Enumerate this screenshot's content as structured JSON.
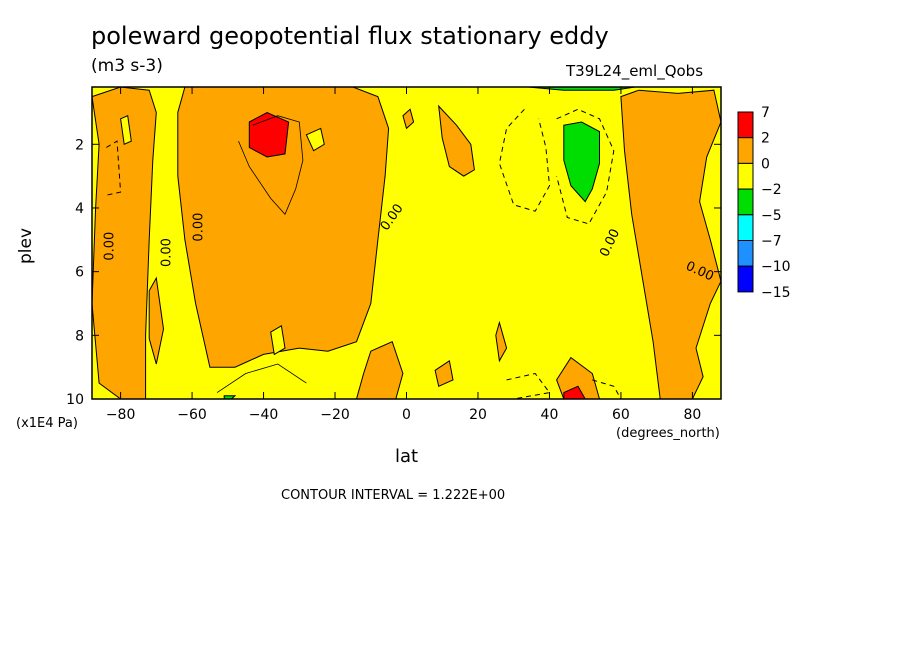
{
  "chart_data": {
    "type": "heatmap",
    "title": "poleward geopotential flux stationary eddy",
    "units": "(m3 s-3)",
    "dataset": "T39L24_eml_Qobs",
    "xlabel": "lat",
    "xunit": "(degrees_north)",
    "ylabel": "plev",
    "yunit": "(x1E4 Pa)",
    "contour_interval_text": "CONTOUR INTERVAL = 1.222E+00",
    "xlim": [
      -88,
      88
    ],
    "ylim": [
      10,
      0.2
    ],
    "x_ticks": [
      {
        "v": -80,
        "label": "−80"
      },
      {
        "v": -60,
        "label": "−60"
      },
      {
        "v": -40,
        "label": "−40"
      },
      {
        "v": -20,
        "label": "−20"
      },
      {
        "v": 0,
        "label": "0"
      },
      {
        "v": 20,
        "label": "20"
      },
      {
        "v": 40,
        "label": "40"
      },
      {
        "v": 60,
        "label": "60"
      },
      {
        "v": 80,
        "label": "80"
      }
    ],
    "y_ticks": [
      {
        "v": 2,
        "label": "2"
      },
      {
        "v": 4,
        "label": "4"
      },
      {
        "v": 6,
        "label": "6"
      },
      {
        "v": 8,
        "label": "8"
      },
      {
        "v": 10,
        "label": "10"
      }
    ],
    "colorbar": {
      "labels": [
        "7",
        "2",
        "0",
        "−2",
        "−5",
        "−7",
        "−10",
        "−15"
      ],
      "colors": [
        "#ff0000",
        "#ffa500",
        "#ffff00",
        "#00dd00",
        "#00ffff",
        "#1e90ff",
        "#0000ff"
      ]
    },
    "regions": [
      {
        "level": "0 to 2",
        "color": "#ffa500",
        "points": [
          [
            -88,
            0.5
          ],
          [
            -86,
            2
          ],
          [
            -87,
            4
          ],
          [
            -88,
            7
          ],
          [
            -86,
            9.5
          ],
          [
            -80,
            10
          ],
          [
            -73,
            10
          ],
          [
            -73,
            8
          ],
          [
            -72,
            5
          ],
          [
            -71,
            2.5
          ],
          [
            -70,
            1
          ],
          [
            -72,
            0.3
          ],
          [
            -80,
            0.2
          ]
        ]
      },
      {
        "level": "0 to 2",
        "color": "#ffa500",
        "points": [
          [
            -62,
            0.2
          ],
          [
            -64,
            1
          ],
          [
            -64,
            3
          ],
          [
            -62,
            5
          ],
          [
            -59,
            7
          ],
          [
            -55,
            9
          ],
          [
            -48,
            9
          ],
          [
            -40,
            8.6
          ],
          [
            -30,
            8.4
          ],
          [
            -22,
            8.5
          ],
          [
            -14,
            8.2
          ],
          [
            -10,
            7
          ],
          [
            -8,
            5
          ],
          [
            -6,
            3
          ],
          [
            -5,
            1.5
          ],
          [
            -8,
            0.5
          ],
          [
            -15,
            0.2
          ],
          [
            -35,
            0.2
          ]
        ]
      },
      {
        "level": "0 to 2",
        "color": "#ffa500",
        "points": [
          [
            -10,
            8.5
          ],
          [
            -4,
            8.2
          ],
          [
            -1,
            9.2
          ],
          [
            -3,
            10
          ],
          [
            -14,
            10
          ],
          [
            -12,
            9.2
          ]
        ]
      },
      {
        "level": "0 to 2",
        "color": "#ffa500",
        "points": [
          [
            9,
            0.8
          ],
          [
            14,
            1.4
          ],
          [
            18,
            2
          ],
          [
            19,
            2.8
          ],
          [
            16,
            3
          ],
          [
            12,
            2.7
          ],
          [
            10,
            1.8
          ]
        ]
      },
      {
        "level": "0 to 2",
        "color": "#ffa500",
        "points": [
          [
            60,
            0.5
          ],
          [
            65,
            0.3
          ],
          [
            76,
            0.4
          ],
          [
            86,
            0.3
          ],
          [
            88,
            1.3
          ],
          [
            84,
            2.4
          ],
          [
            82,
            3.8
          ],
          [
            85,
            5
          ],
          [
            88,
            6.3
          ],
          [
            85,
            7
          ],
          [
            81,
            8.4
          ],
          [
            83,
            9.3
          ],
          [
            80,
            10
          ],
          [
            71,
            10
          ],
          [
            69,
            8.2
          ],
          [
            66,
            6.2
          ],
          [
            63,
            4.2
          ],
          [
            61,
            2.2
          ]
        ]
      },
      {
        "level": "0 to 2",
        "color": "#ffa500",
        "points": [
          [
            42,
            9.4
          ],
          [
            46,
            8.7
          ],
          [
            52,
            9.2
          ],
          [
            54,
            10
          ],
          [
            44,
            10
          ]
        ]
      },
      {
        "level": "0 to 2",
        "color": "#ffa500",
        "points": [
          [
            25,
            8
          ],
          [
            26,
            7.6
          ],
          [
            28,
            8.4
          ],
          [
            26,
            8.8
          ]
        ]
      },
      {
        "level": "0 to 2",
        "color": "#ffa500",
        "points": [
          [
            -1,
            1.1
          ],
          [
            1,
            0.9
          ],
          [
            2,
            1.3
          ],
          [
            0,
            1.5
          ]
        ]
      },
      {
        "level": "0 to 2",
        "color": "#ffa500",
        "points": [
          [
            -72,
            6.6
          ],
          [
            -70,
            6.2
          ],
          [
            -68,
            7.8
          ],
          [
            -70,
            8.9
          ],
          [
            -72,
            8.1
          ]
        ]
      },
      {
        "level": "0 to 2",
        "color": "#ffa500",
        "points": [
          [
            8,
            9.1
          ],
          [
            12,
            8.8
          ],
          [
            13,
            9.4
          ],
          [
            9,
            9.6
          ]
        ]
      },
      {
        "level": "2 to 7",
        "color": "#ff0000",
        "points": [
          [
            -44,
            1.3
          ],
          [
            -39,
            1
          ],
          [
            -33,
            1.3
          ],
          [
            -34,
            2.3
          ],
          [
            -39,
            2.4
          ],
          [
            -44,
            2.1
          ]
        ]
      },
      {
        "level": "2 to 7",
        "color": "#ff0000",
        "points": [
          [
            44,
            9.8
          ],
          [
            48,
            9.6
          ],
          [
            50,
            10
          ],
          [
            44,
            10
          ]
        ]
      },
      {
        "level": "-2 to 0",
        "color": "#ffff00",
        "points": [
          [
            -38,
            7.9
          ],
          [
            -35,
            7.7
          ],
          [
            -34,
            8.4
          ],
          [
            -37,
            8.6
          ]
        ]
      },
      {
        "level": "-2 to 0",
        "color": "#ffff00",
        "points": [
          [
            -28,
            1.7
          ],
          [
            -24,
            1.5
          ],
          [
            -23,
            2
          ],
          [
            -26,
            2.2
          ]
        ]
      },
      {
        "level": "-2 to 0",
        "color": "#ffff00",
        "points": [
          [
            -80,
            1.2
          ],
          [
            -78,
            1.1
          ],
          [
            -77,
            1.9
          ],
          [
            -79,
            2
          ]
        ]
      },
      {
        "level": "-5 to -2",
        "color": "#00dd00",
        "points": [
          [
            44,
            1.4
          ],
          [
            49,
            1.3
          ],
          [
            54,
            1.6
          ],
          [
            54,
            2.6
          ],
          [
            52,
            3.4
          ],
          [
            50,
            3.8
          ],
          [
            46,
            3.3
          ],
          [
            44,
            2.5
          ]
        ]
      },
      {
        "level": "-5 to -2",
        "color": "#00dd00",
        "points": [
          [
            34,
            0.2
          ],
          [
            44,
            0.3
          ],
          [
            58,
            0.3
          ],
          [
            64,
            0.2
          ]
        ]
      },
      {
        "level": "-5 to -2",
        "color": "#00dd00",
        "points": [
          [
            -51,
            9.9
          ],
          [
            -48,
            9.9
          ],
          [
            -49,
            10
          ],
          [
            -51,
            10
          ]
        ]
      }
    ],
    "dashed_lines": [
      [
        [
          33,
          0.9
        ],
        [
          28,
          1.5
        ],
        [
          26,
          2.6
        ],
        [
          30,
          3.9
        ],
        [
          36,
          4.1
        ],
        [
          40,
          3.3
        ],
        [
          39,
          2.1
        ],
        [
          37,
          1.2
        ]
      ],
      [
        [
          42,
          1.2
        ],
        [
          48,
          0.9
        ],
        [
          54,
          1.2
        ],
        [
          58,
          2.2
        ],
        [
          56,
          3.5
        ],
        [
          51,
          4.5
        ],
        [
          45,
          4.3
        ],
        [
          42,
          3
        ]
      ],
      [
        [
          -84,
          2.1
        ],
        [
          -81,
          1.9
        ],
        [
          -80,
          3.5
        ],
        [
          -84,
          3.6
        ]
      ],
      [
        [
          28,
          9.4
        ],
        [
          36,
          9.2
        ],
        [
          40,
          9.8
        ],
        [
          30,
          10
        ]
      ],
      [
        [
          52,
          9.4
        ],
        [
          58,
          9.6
        ],
        [
          60,
          10
        ]
      ]
    ],
    "solid_lines": [
      [
        [
          -43,
          1.4
        ],
        [
          -36,
          1.1
        ],
        [
          -30,
          1.3
        ],
        [
          -29,
          2.5
        ],
        [
          -31,
          3.4
        ],
        [
          -34,
          4.2
        ],
        [
          -38,
          3.7
        ],
        [
          -44,
          2.7
        ],
        [
          -47,
          1.9
        ]
      ],
      [
        [
          -28,
          9.5
        ],
        [
          -36,
          8.9
        ],
        [
          -45,
          9.2
        ],
        [
          -53,
          9.8
        ]
      ]
    ],
    "contour_labels": [
      {
        "x": -83,
        "y": 5.2,
        "text": "0.00",
        "rot": -90
      },
      {
        "x": -67,
        "y": 5.4,
        "text": "0.00",
        "rot": -90
      },
      {
        "x": -58,
        "y": 4.6,
        "text": "0.00",
        "rot": -90
      },
      {
        "x": -4,
        "y": 4.3,
        "text": "0.00",
        "rot": -55
      },
      {
        "x": 57,
        "y": 5.1,
        "text": "0.00",
        "rot": -65
      },
      {
        "x": 82,
        "y": 6,
        "text": "0.00",
        "rot": 25
      }
    ]
  }
}
